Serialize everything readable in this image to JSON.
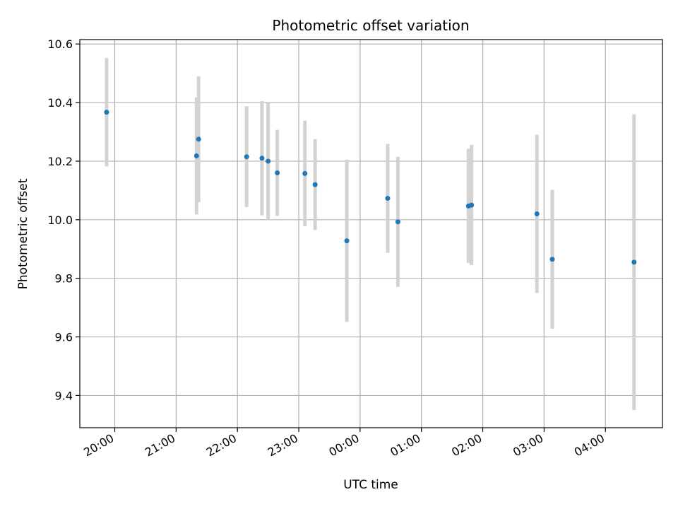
{
  "chart_data": {
    "type": "scatter",
    "title": "Photometric offset variation",
    "xlabel": "UTC time",
    "ylabel": "Photometric offset",
    "grid": true,
    "x_ticks": [
      "20:00",
      "21:00",
      "22:00",
      "23:00",
      "00:00",
      "01:00",
      "02:00",
      "03:00",
      "04:00"
    ],
    "y_ticks": [
      9.4,
      9.6,
      9.8,
      10.0,
      10.2,
      10.4,
      10.6
    ],
    "x_range_hours": [
      19.43,
      28.93
    ],
    "ylim": [
      9.29,
      10.615
    ],
    "point_color": "#1f77b4",
    "errorbar_color": "#d3d3d3",
    "points": [
      {
        "time": "19:52",
        "y": 10.367,
        "err": 0.185
      },
      {
        "time": "21:20",
        "y": 10.218,
        "err": 0.2
      },
      {
        "time": "21:22",
        "y": 10.275,
        "err": 0.215
      },
      {
        "time": "22:09",
        "y": 10.215,
        "err": 0.172
      },
      {
        "time": "22:24",
        "y": 10.21,
        "err": 0.195
      },
      {
        "time": "22:30",
        "y": 10.2,
        "err": 0.2
      },
      {
        "time": "22:39",
        "y": 10.16,
        "err": 0.147
      },
      {
        "time": "23:06",
        "y": 10.158,
        "err": 0.18
      },
      {
        "time": "23:16",
        "y": 10.12,
        "err": 0.155
      },
      {
        "time": "23:47",
        "y": 9.928,
        "err": 0.277
      },
      {
        "time": "00:27",
        "y": 10.073,
        "err": 0.186
      },
      {
        "time": "00:37",
        "y": 9.993,
        "err": 0.222
      },
      {
        "time": "01:46",
        "y": 10.047,
        "err": 0.195
      },
      {
        "time": "01:49",
        "y": 10.05,
        "err": 0.205
      },
      {
        "time": "02:53",
        "y": 10.02,
        "err": 0.27
      },
      {
        "time": "03:08",
        "y": 9.865,
        "err": 0.237
      },
      {
        "time": "04:28",
        "y": 9.855,
        "err": 0.505
      }
    ]
  }
}
